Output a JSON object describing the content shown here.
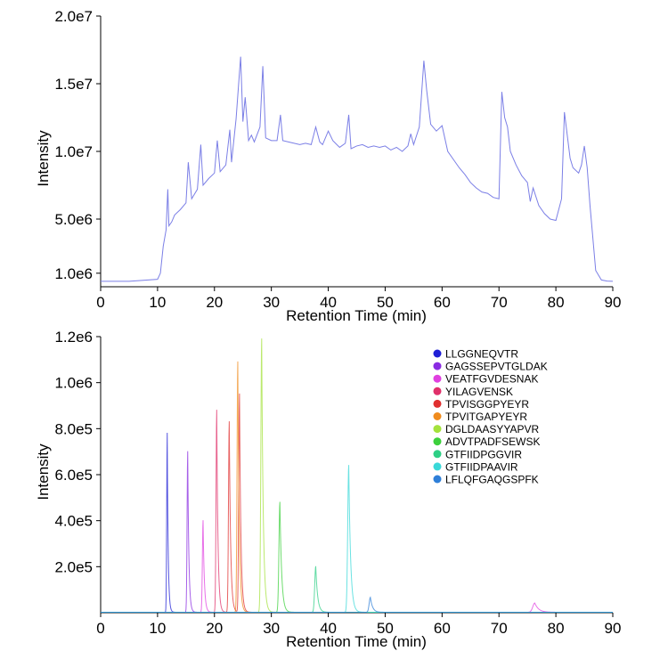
{
  "chart_data": [
    {
      "type": "line",
      "xlabel": "Retention Time (min)",
      "ylabel": "Intensity",
      "xlim": [
        0,
        90
      ],
      "ylim": [
        0,
        20000000
      ],
      "x_ticks": [
        0,
        10,
        20,
        30,
        40,
        50,
        60,
        70,
        80,
        90
      ],
      "x_tick_labels": [
        "0",
        "10",
        "20",
        "30",
        "40",
        "50",
        "60",
        "70",
        "80",
        "90"
      ],
      "y_ticks": [
        1000000,
        5000000,
        10000000,
        15000000,
        20000000
      ],
      "y_tick_labels": [
        "1.0e6",
        "5.0e6",
        "1.0e7",
        "1.5e7",
        "2.0e7"
      ],
      "grid": false,
      "series": [
        {
          "color": "#7b7fe6",
          "x": [
            0,
            5,
            10,
            10.5,
            11,
            11.5,
            11.8,
            12,
            12.5,
            13,
            14,
            15,
            15.4,
            16,
            17,
            17.6,
            18,
            19,
            20,
            20.5,
            21,
            22,
            22.7,
            23,
            23.8,
            24.6,
            25,
            25.4,
            26,
            26.5,
            27,
            28,
            28.5,
            29,
            30,
            31,
            31.6,
            32,
            33,
            34,
            35,
            36,
            37,
            37.8,
            38.5,
            39,
            40,
            40.8,
            41.5,
            42,
            43,
            43.6,
            44,
            45,
            46,
            47,
            48,
            49,
            50,
            51,
            52,
            53,
            54,
            54.5,
            55,
            56,
            56.8,
            57.3,
            58,
            59,
            60,
            61,
            62,
            63,
            64,
            65,
            66,
            67,
            68,
            69,
            70,
            70.5,
            71,
            71.5,
            72,
            73,
            74,
            75,
            75.5,
            76,
            77,
            78,
            79,
            80,
            81,
            81.5,
            82,
            82.5,
            83,
            84,
            84.5,
            85,
            85.5,
            86,
            87,
            88,
            89,
            90
          ],
          "y": [
            400000,
            400000,
            550000,
            1000000,
            3000000,
            4200000,
            7200000,
            4500000,
            4800000,
            5300000,
            5700000,
            6200000,
            9200000,
            6500000,
            7200000,
            10500000,
            7500000,
            8000000,
            8400000,
            10800000,
            8500000,
            9000000,
            11600000,
            9200000,
            12400000,
            17000000,
            12200000,
            14000000,
            10800000,
            11200000,
            10700000,
            11800000,
            16300000,
            11000000,
            10800000,
            10800000,
            12700000,
            10800000,
            10700000,
            10600000,
            10500000,
            10600000,
            10500000,
            11800000,
            10700000,
            10500000,
            11500000,
            10800000,
            10500000,
            10300000,
            10600000,
            12700000,
            10200000,
            10400000,
            10500000,
            10300000,
            10400000,
            10300000,
            10400000,
            10100000,
            10300000,
            10000000,
            10400000,
            11300000,
            10500000,
            11800000,
            16700000,
            14500000,
            12000000,
            11500000,
            11900000,
            10000000,
            9400000,
            8800000,
            8300000,
            7700000,
            7300000,
            7000000,
            6900000,
            6600000,
            6500000,
            14400000,
            12500000,
            11800000,
            10000000,
            9000000,
            8200000,
            7700000,
            6300000,
            7300000,
            6000000,
            5400000,
            5000000,
            4900000,
            6500000,
            12900000,
            11200000,
            9500000,
            8800000,
            8400000,
            9000000,
            10400000,
            8800000,
            6000000,
            1200000,
            500000,
            420000,
            400000
          ]
        }
      ]
    },
    {
      "type": "line",
      "xlabel": "Retention Time (min)",
      "ylabel": "Intensity",
      "xlim": [
        0,
        90
      ],
      "ylim": [
        0,
        1200000
      ],
      "x_ticks": [
        0,
        10,
        20,
        30,
        40,
        50,
        60,
        70,
        80,
        90
      ],
      "x_tick_labels": [
        "0",
        "10",
        "20",
        "30",
        "40",
        "50",
        "60",
        "70",
        "80",
        "90"
      ],
      "y_ticks": [
        200000,
        400000,
        600000,
        800000,
        1000000,
        1200000
      ],
      "y_tick_labels": [
        "2.0e5",
        "4.0e5",
        "6.0e5",
        "8.0e5",
        "1.0e6",
        "1.2e6"
      ],
      "grid": false,
      "legend": "top-right",
      "series": [
        {
          "name": "LLGGNEQVTR",
          "color": "#1f1fd6",
          "peaks": [
            [
              11.7,
              780000,
              0.15
            ]
          ]
        },
        {
          "name": "GAGSSEPVTGLDAK",
          "color": "#8a2be2",
          "peaks": [
            [
              15.3,
              700000,
              0.18
            ]
          ]
        },
        {
          "name": "VEATFGVDESNAK",
          "color": "#e040e0",
          "peaks": [
            [
              18.0,
              400000,
              0.2
            ],
            [
              76.3,
              40000,
              0.6
            ]
          ]
        },
        {
          "name": "YILAGVENSK",
          "color": "#e0306a",
          "peaks": [
            [
              20.4,
              880000,
              0.2
            ]
          ]
        },
        {
          "name": "TPVISGGPYEYR",
          "color": "#e03030",
          "peaks": [
            [
              22.6,
              830000,
              0.22
            ],
            [
              24.4,
              950000,
              0.22
            ]
          ]
        },
        {
          "name": "TPVITGAPYEYR",
          "color": "#f08c1e",
          "peaks": [
            [
              24.1,
              1090000,
              0.22
            ]
          ]
        },
        {
          "name": "DGLDAASYYAPVR",
          "color": "#a4e23c",
          "peaks": [
            [
              28.3,
              1190000,
              0.25
            ]
          ]
        },
        {
          "name": "ADVTPADFSEWSK",
          "color": "#3cd03c",
          "peaks": [
            [
              31.5,
              480000,
              0.28
            ]
          ]
        },
        {
          "name": "GTFIIDPGGVIR",
          "color": "#2ecf85",
          "peaks": [
            [
              37.8,
              200000,
              0.3
            ]
          ]
        },
        {
          "name": "GTFIIDPAAVIR",
          "color": "#3ad8d8",
          "peaks": [
            [
              43.6,
              640000,
              0.3
            ]
          ]
        },
        {
          "name": "LFLQFGAQGSPFK",
          "color": "#2e7fd8",
          "peaks": [
            [
              47.4,
              65000,
              0.35
            ]
          ]
        }
      ]
    }
  ]
}
